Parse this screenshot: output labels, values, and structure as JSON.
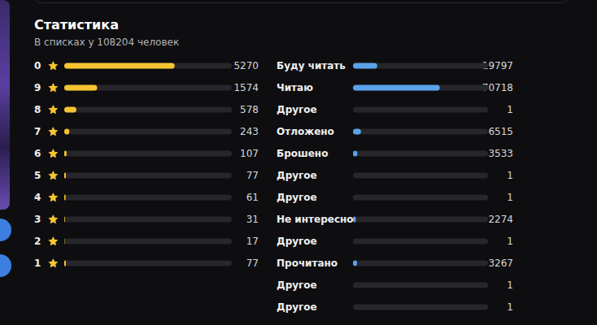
{
  "header": {
    "title": "Статистика",
    "subtitle": "В списках у 108204 человек"
  },
  "chart_data": [
    {
      "type": "bar",
      "orientation": "horizontal",
      "marker": "star",
      "categories": [
        "0",
        "9",
        "8",
        "7",
        "6",
        "5",
        "4",
        "3",
        "2",
        "1"
      ],
      "values": [
        5270,
        1574,
        578,
        243,
        107,
        77,
        61,
        31,
        17,
        77
      ],
      "color": "#f5c430",
      "xlim": [
        0,
        8000
      ],
      "data_labels": true,
      "tick_labels": "y",
      "grid": false
    },
    {
      "type": "bar",
      "orientation": "horizontal",
      "categories": [
        "Буду читать",
        "Читаю",
        "Другое",
        "Отложено",
        "Брошено",
        "Другое",
        "Другое",
        "Не интересно",
        "Другое",
        "Прочитано",
        "Другое",
        "Другое"
      ],
      "values": [
        19797,
        70718,
        1,
        6515,
        3533,
        1,
        1,
        2274,
        1,
        3267,
        1,
        1
      ],
      "color": "#5aa2ea",
      "xlim": [
        0,
        110000
      ],
      "data_labels": true,
      "tick_labels": "y",
      "grid": false
    }
  ]
}
